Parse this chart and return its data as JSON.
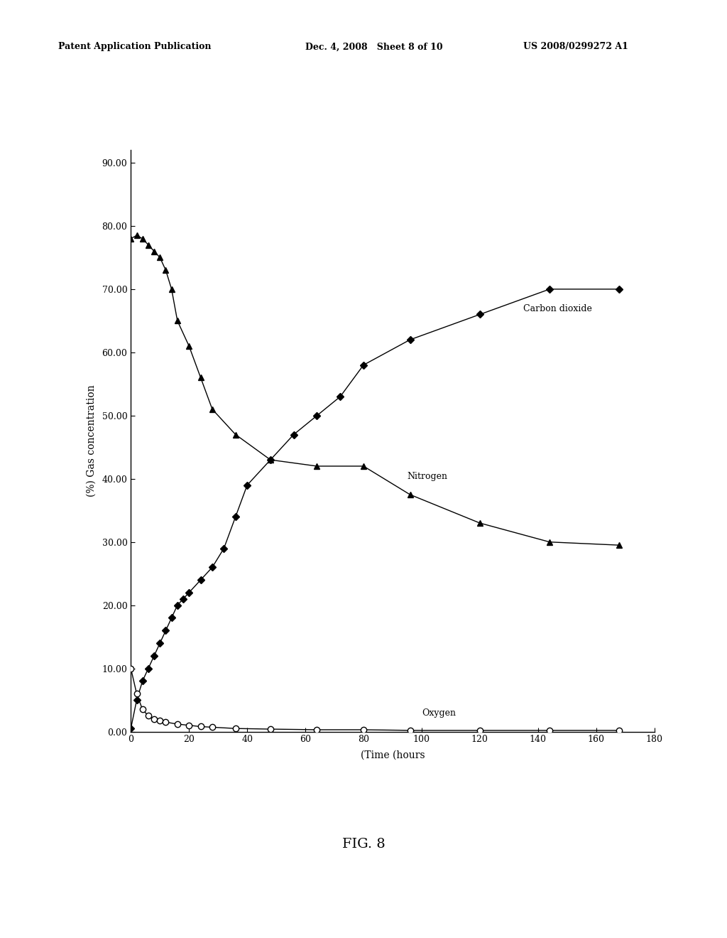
{
  "co2_x": [
    0,
    2,
    4,
    6,
    8,
    10,
    12,
    14,
    16,
    18,
    20,
    24,
    28,
    32,
    36,
    40,
    48,
    56,
    64,
    72,
    80,
    96,
    120,
    144,
    168
  ],
  "co2_y": [
    0.5,
    5,
    8,
    10,
    12,
    14,
    16,
    18,
    20,
    21,
    22,
    24,
    26,
    29,
    34,
    39,
    43,
    47,
    50,
    53,
    58,
    62,
    66,
    70,
    70
  ],
  "n2_x": [
    0,
    2,
    4,
    6,
    8,
    10,
    12,
    14,
    16,
    20,
    24,
    28,
    36,
    48,
    64,
    80,
    96,
    120,
    144,
    168
  ],
  "n2_y": [
    78,
    78.5,
    78,
    77,
    76,
    75,
    73,
    70,
    65,
    61,
    56,
    51,
    47,
    43,
    42,
    42,
    37.5,
    33,
    30,
    29.5
  ],
  "o2_x": [
    0,
    2,
    4,
    6,
    8,
    10,
    12,
    16,
    20,
    24,
    28,
    36,
    48,
    64,
    80,
    96,
    120,
    144,
    168
  ],
  "o2_y": [
    10,
    6,
    3.5,
    2.5,
    2.0,
    1.8,
    1.5,
    1.2,
    1.0,
    0.8,
    0.7,
    0.5,
    0.4,
    0.3,
    0.3,
    0.2,
    0.2,
    0.2,
    0.2
  ],
  "xlabel": "(Time (hours",
  "ylabel": "(%) Gas concentration",
  "ylim": [
    0,
    92
  ],
  "xlim": [
    0,
    180
  ],
  "yticks": [
    0.0,
    10.0,
    20.0,
    30.0,
    40.0,
    50.0,
    60.0,
    70.0,
    80.0,
    90.0
  ],
  "ytick_labels": [
    "0.00",
    "10.00",
    "20.00",
    "30.00",
    "40.00",
    "50.00",
    "60.00",
    "70.00",
    "80.00",
    "90.00"
  ],
  "xticks": [
    0,
    20,
    40,
    60,
    80,
    100,
    120,
    140,
    160,
    180
  ],
  "co2_label": "Carbon dioxide",
  "n2_label": "Nitrogen",
  "o2_label": "Oxygen",
  "fig_title": "FIG. 8",
  "header_left": "Patent Application Publication",
  "header_mid": "Dec. 4, 2008   Sheet 8 of 10",
  "header_right": "US 2008/0299272 A1",
  "background_color": "#ffffff",
  "line_color": "#000000"
}
